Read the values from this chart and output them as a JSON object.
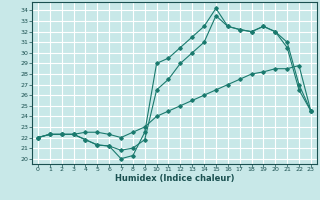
{
  "xlabel": "Humidex (Indice chaleur)",
  "bg_color": "#c8e8e8",
  "grid_color": "#ffffff",
  "line_color": "#1a7a6e",
  "xlim": [
    -0.5,
    23.5
  ],
  "ylim": [
    19.5,
    34.8
  ],
  "xticks": [
    0,
    1,
    2,
    3,
    4,
    5,
    6,
    7,
    8,
    9,
    10,
    11,
    12,
    13,
    14,
    15,
    16,
    17,
    18,
    19,
    20,
    21,
    22,
    23
  ],
  "yticks": [
    20,
    21,
    22,
    23,
    24,
    25,
    26,
    27,
    28,
    29,
    30,
    31,
    32,
    33,
    34
  ],
  "line1_x": [
    0,
    1,
    2,
    3,
    4,
    5,
    6,
    7,
    8,
    9,
    10,
    11,
    12,
    13,
    14,
    15,
    16,
    17,
    18,
    19,
    20,
    21,
    22,
    23
  ],
  "line1_y": [
    22.0,
    22.3,
    22.3,
    22.3,
    22.5,
    22.5,
    22.3,
    22.0,
    22.5,
    23.0,
    24.0,
    24.5,
    25.0,
    25.5,
    26.0,
    26.5,
    27.0,
    27.5,
    28.0,
    28.2,
    28.5,
    28.5,
    28.8,
    24.5
  ],
  "line2_x": [
    0,
    1,
    2,
    3,
    4,
    5,
    6,
    7,
    8,
    9,
    10,
    11,
    12,
    13,
    14,
    15,
    16,
    17,
    18,
    19,
    20,
    21,
    22,
    23
  ],
  "line2_y": [
    22.0,
    22.3,
    22.3,
    22.3,
    21.8,
    21.3,
    21.2,
    20.0,
    20.3,
    22.5,
    29.0,
    29.5,
    30.5,
    31.5,
    32.5,
    34.2,
    32.5,
    32.2,
    32.0,
    32.5,
    32.0,
    30.5,
    26.5,
    24.5
  ],
  "line3_x": [
    0,
    1,
    2,
    3,
    4,
    5,
    6,
    7,
    8,
    9,
    10,
    11,
    12,
    13,
    14,
    15,
    16,
    17,
    18,
    19,
    20,
    21,
    22,
    23
  ],
  "line3_y": [
    22.0,
    22.3,
    22.3,
    22.3,
    21.8,
    21.3,
    21.2,
    20.8,
    21.0,
    21.8,
    26.5,
    27.5,
    29.0,
    30.0,
    31.0,
    33.5,
    32.5,
    32.2,
    32.0,
    32.5,
    32.0,
    31.0,
    27.0,
    24.5
  ]
}
